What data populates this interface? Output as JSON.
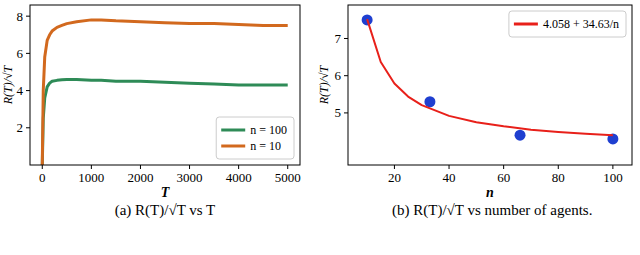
{
  "chart_data": [
    {
      "type": "line",
      "title": "(a) R(T)/√T vs T",
      "x_label": "T",
      "y_label": "R(T)/√T",
      "x": [
        0,
        20,
        50,
        100,
        150,
        200,
        300,
        400,
        500,
        700,
        1000,
        1200,
        1500,
        2000,
        2500,
        3000,
        3500,
        4000,
        4500,
        5000
      ],
      "series": [
        {
          "name": "n = 100",
          "color": "#2e8b57",
          "line_style": "solid",
          "values": [
            0,
            2.5,
            3.6,
            4.2,
            4.4,
            4.5,
            4.55,
            4.58,
            4.6,
            4.6,
            4.55,
            4.55,
            4.5,
            4.5,
            4.45,
            4.4,
            4.35,
            4.3,
            4.3,
            4.3
          ]
        },
        {
          "name": "n = 10",
          "color": "#d2691e",
          "line_style": "solid",
          "values": [
            0,
            4,
            5.8,
            6.7,
            7.0,
            7.2,
            7.4,
            7.5,
            7.6,
            7.7,
            7.8,
            7.8,
            7.75,
            7.7,
            7.65,
            7.6,
            7.6,
            7.55,
            7.5,
            7.5
          ]
        }
      ],
      "xlim": [
        -250,
        5250
      ],
      "xticks": [
        0,
        1000,
        2000,
        3000,
        4000,
        5000
      ],
      "ylim": [
        0,
        8.6
      ],
      "yticks": [
        2,
        4,
        6,
        8
      ],
      "grid": false,
      "legend": "lower right"
    },
    {
      "type": "scatter",
      "title": "(b) R(T)/√T vs number of agents.",
      "x_label": "n",
      "y_label": "R(T)/√T",
      "series": [
        {
          "type": "scatter",
          "color": "#1f3fd0",
          "marker": "circle",
          "x": [
            10,
            33,
            66,
            100
          ],
          "values": [
            7.5,
            5.3,
            4.4,
            4.3
          ]
        },
        {
          "type": "line",
          "name": "4.058 + 34.63/n",
          "color": "#e8201a",
          "line_style": "solid",
          "x": [
            10,
            15,
            20,
            25,
            30,
            40,
            50,
            60,
            70,
            80,
            90,
            100
          ],
          "values": [
            7.52,
            6.37,
            5.79,
            5.44,
            5.21,
            4.92,
            4.75,
            4.64,
            4.55,
            4.49,
            4.44,
            4.4
          ]
        }
      ],
      "xlim": [
        3,
        107
      ],
      "xticks": [
        20,
        40,
        60,
        80,
        100
      ],
      "ylim": [
        3.6,
        7.9
      ],
      "yticks": [
        5,
        6,
        7
      ],
      "grid": false,
      "legend": "upper right"
    }
  ]
}
